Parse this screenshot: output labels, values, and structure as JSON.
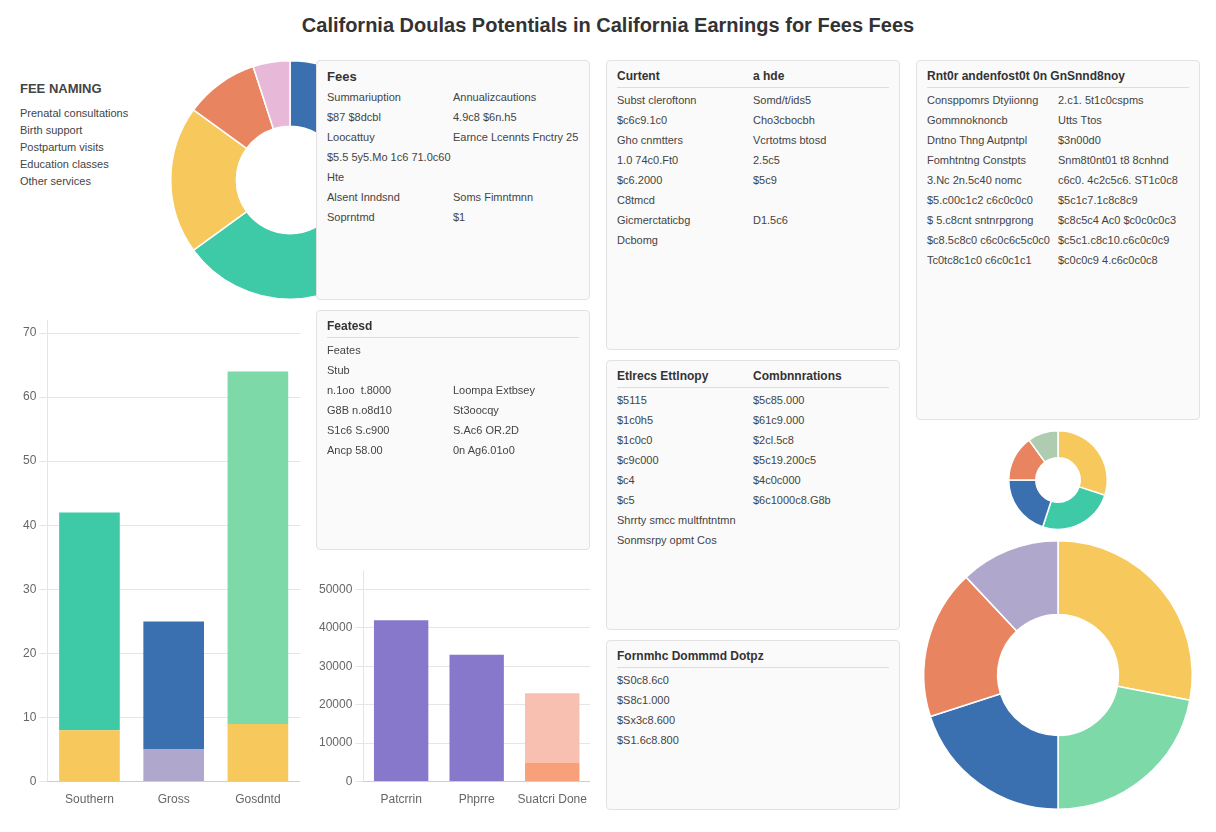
{
  "title": "California Doulas Potentials in California Earnings for Fees Fees",
  "chart_data": [
    {
      "type": "pie",
      "values": [
        35,
        30,
        20,
        10,
        5
      ],
      "colors": [
        "#3a70b0",
        "#3ec9a7",
        "#f7c85b",
        "#e88560",
        "#e8b8d8"
      ],
      "annotations": [
        "FEE NAMING",
        "Prenatal consultations",
        "Birth support",
        "Postpartum visits",
        "Education classes",
        "Other services"
      ]
    },
    {
      "type": "bar",
      "categories": [
        "Southern",
        "Gross",
        "Gosdntd"
      ],
      "stacked": true,
      "series": [
        {
          "values": [
            8000,
            5000,
            9000
          ],
          "colors": [
            "#f7c85b",
            "#b0a8cc",
            "#f7c85b"
          ]
        },
        {
          "values": [
            34000,
            20000,
            55000
          ],
          "colors": [
            "#3ec9a7",
            "#3a70b0",
            "#7dd9a8"
          ]
        }
      ],
      "ylim": [
        0,
        72000
      ],
      "yticks": [
        0,
        {
          "value": 10000,
          "label": "10"
        },
        {
          "value": 20000,
          "label": "20"
        },
        {
          "value": 30000,
          "label": "30"
        },
        {
          "value": 40000,
          "label": "40"
        },
        {
          "value": 50000,
          "label": "50"
        },
        {
          "value": 60000,
          "label": "60"
        },
        {
          "value": 70000,
          "label": "70"
        }
      ],
      "grid": true
    },
    {
      "type": "table",
      "title": "Fees",
      "annotations": [
        [
          "Summariuption",
          "Annualizcautions"
        ],
        [
          "$87 $8dcbl",
          "4.9c8 $6n.h5"
        ],
        [
          "Loocattuy",
          "Earnce Lcennts Fnctry 25"
        ],
        [
          "$5.5 5y5.Mo 1c6 71.0c60"
        ],
        [
          "Hte"
        ],
        [
          "Alsent Inndsnd",
          "Soms Fimntmnn"
        ],
        [
          "Soprntmd",
          "$1"
        ]
      ]
    },
    {
      "type": "table",
      "annotations": [
        [
          "Featesd"
        ],
        [
          "Feates"
        ],
        [
          "Stub"
        ],
        [
          "n.1oo  t.8000",
          "Loompa Extbsey"
        ],
        [
          "G8B n.o8d10",
          "St3oocqy"
        ],
        [
          "S1c6 S.c900",
          "S.Ac6 OR.2D"
        ],
        [
          "Ancp 58.00",
          "0n Ag6.01o0"
        ]
      ]
    },
    {
      "type": "bar",
      "categories": [
        "Patcrrin",
        "Phprre",
        "Suatcri Done"
      ],
      "stacked": true,
      "series": [
        {
          "values": [
            0,
            0,
            5000
          ],
          "colors": [
            "#b0a8cc",
            "#b0a8cc",
            "#f7a07a"
          ]
        },
        {
          "values": [
            42000,
            33000,
            18000
          ],
          "colors": [
            "#8878cc",
            "#8878cc",
            "#f7c0b0"
          ]
        }
      ],
      "ylim": [
        0,
        55000
      ],
      "yticks": [
        0,
        10000,
        20000,
        30000,
        40000,
        50000
      ],
      "grid": true
    },
    {
      "type": "table",
      "annotations": [
        [
          "Curtent",
          "a hde"
        ],
        [
          "Subst cleroftonn",
          "Somd/t/ids5"
        ],
        [
          "$c6c9.1c0",
          "Cho3cbocbh"
        ],
        [
          "Gho cnmtters",
          "Vcrtotms btosd"
        ],
        [
          "1.0 74c0.Ft0",
          "2.5c5"
        ],
        [
          "$c6.2000",
          "$5c9"
        ],
        [
          "C8tmcd"
        ],
        [
          "Gicmerctaticbg",
          "D1.5c6"
        ],
        [
          "Dcbomg"
        ]
      ]
    },
    {
      "type": "table",
      "annotations": [
        [
          "Etlrecs Ettlnopy",
          "Combnnrations"
        ],
        [
          "$5115",
          "$5c85.000"
        ],
        [
          "$1c0h5",
          "$61c9.000"
        ],
        [
          "$1c0c0",
          "$2cl.5c8"
        ],
        [
          "$c9c000",
          "$5c19.200c5"
        ],
        [
          "$c4",
          "$4c0c000"
        ],
        [
          "$c5",
          "$6c1000c8.G8b"
        ],
        [
          "Shrrty smcc multfntntmn"
        ],
        [
          "Sonmsrpy opmt Cos"
        ]
      ]
    },
    {
      "type": "table",
      "annotations": [
        [
          "Fornmhc Dommmd Dotpz"
        ],
        [
          "$S0c8.6c0"
        ],
        [
          "$S8c1.000"
        ],
        [
          "$Sx3c8.600"
        ],
        [
          "$S1.6c8.800"
        ]
      ]
    },
    {
      "type": "table",
      "annotations": [
        [
          "Rnt0r andenfost0t 0n Gn",
          "Snnd8noy"
        ],
        [
          "Consppomrs Dtyiionng",
          "2.c1. 5t1c0cspms"
        ],
        [
          "Gommnoknoncb",
          "Utts Ttos"
        ],
        [
          "Dntno Thng Autpntpl",
          "$3n00d0"
        ],
        [
          "Fomhtntng Constpts",
          "Snm8t0nt01 t8 8cnhnd"
        ],
        [
          "3.Nc 2n.5c40 nomc",
          "c6c0. 4c2c5c6. ST1c0c8"
        ],
        [
          "$5.c00c1c2 c6c0c0c0",
          "$5c1c7.1c8c8c9"
        ],
        [
          "$ 5.c8cnt sntnrpgrong",
          "$c8c5c4 Ac0 $c0c0c0c3"
        ],
        [
          "$c8.5c8c0 c6c0c6c5c0c0",
          "$c5c1.c8c10.c6c0c0c9"
        ],
        [
          "Tc0tc8c1c0 c6c0c1c1",
          "$c0c0c9 4.c6c0c0c8"
        ]
      ]
    },
    {
      "type": "pie",
      "values": [
        30,
        25,
        20,
        15,
        10
      ],
      "colors": [
        "#f7c85b",
        "#3ec9a7",
        "#3a70b0",
        "#e88560",
        "#b0ccb0"
      ]
    },
    {
      "type": "pie",
      "values": [
        28,
        22,
        20,
        18,
        12
      ],
      "colors": [
        "#f7c85b",
        "#7dd9a8",
        "#3a70b0",
        "#e88560",
        "#b0a8cc"
      ]
    }
  ]
}
